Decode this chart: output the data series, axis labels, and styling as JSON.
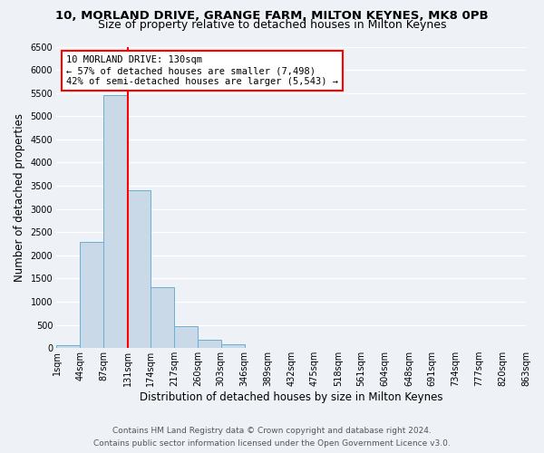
{
  "title": "10, MORLAND DRIVE, GRANGE FARM, MILTON KEYNES, MK8 0PB",
  "subtitle": "Size of property relative to detached houses in Milton Keynes",
  "xlabel": "Distribution of detached houses by size in Milton Keynes",
  "ylabel": "Number of detached properties",
  "bin_edges": [
    1,
    44,
    87,
    131,
    174,
    217,
    260,
    303,
    346,
    389,
    432,
    475,
    518,
    561,
    604,
    648,
    691,
    734,
    777,
    820,
    863
  ],
  "bin_labels": [
    "1sqm",
    "44sqm",
    "87sqm",
    "131sqm",
    "174sqm",
    "217sqm",
    "260sqm",
    "303sqm",
    "346sqm",
    "389sqm",
    "432sqm",
    "475sqm",
    "518sqm",
    "561sqm",
    "604sqm",
    "648sqm",
    "691sqm",
    "734sqm",
    "777sqm",
    "820sqm",
    "863sqm"
  ],
  "bar_heights": [
    70,
    2280,
    5450,
    3400,
    1310,
    480,
    185,
    80,
    0,
    0,
    0,
    0,
    0,
    0,
    0,
    0,
    0,
    0,
    0,
    0
  ],
  "bar_color": "#c9d9e8",
  "bar_edge_color": "#6aafd2",
  "vline_x": 131,
  "vline_color": "red",
  "ylim": [
    0,
    6500
  ],
  "yticks": [
    0,
    500,
    1000,
    1500,
    2000,
    2500,
    3000,
    3500,
    4000,
    4500,
    5000,
    5500,
    6000,
    6500
  ],
  "annotation_title": "10 MORLAND DRIVE: 130sqm",
  "annotation_line1": "← 57% of detached houses are smaller (7,498)",
  "annotation_line2": "42% of semi-detached houses are larger (5,543) →",
  "annotation_box_color": "#ffffff",
  "annotation_box_edgecolor": "red",
  "footer_line1": "Contains HM Land Registry data © Crown copyright and database right 2024.",
  "footer_line2": "Contains public sector information licensed under the Open Government Licence v3.0.",
  "bg_color": "#eef2f7",
  "grid_color": "#ffffff",
  "title_fontsize": 9.5,
  "subtitle_fontsize": 9,
  "axis_label_fontsize": 8.5,
  "tick_fontsize": 7,
  "annotation_fontsize": 7.5,
  "footer_fontsize": 6.5
}
